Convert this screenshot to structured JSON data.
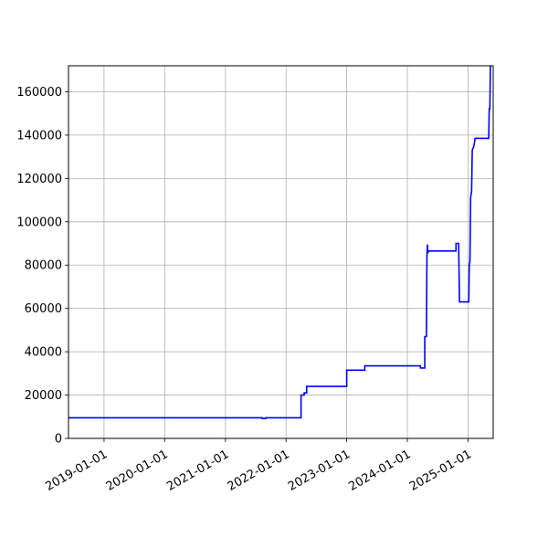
{
  "chart_data": {
    "type": "line",
    "title": "",
    "xlabel": "",
    "ylabel": "",
    "x_axis_type": "date",
    "xlim": [
      "2018-06-01",
      "2025-06-01"
    ],
    "ylim": [
      0,
      172000
    ],
    "grid": true,
    "legend": "none",
    "x_ticks": [
      "2019-01-01",
      "2020-01-01",
      "2021-01-01",
      "2022-01-01",
      "2023-01-01",
      "2024-01-01",
      "2025-01-01"
    ],
    "y_ticks": [
      0,
      20000,
      40000,
      60000,
      80000,
      100000,
      120000,
      140000,
      160000
    ],
    "series": [
      {
        "color": "#0000ff",
        "points": [
          [
            "2018-06-01",
            9500
          ],
          [
            "2021-08-10",
            9500
          ],
          [
            "2021-08-10",
            9200
          ],
          [
            "2021-09-01",
            9200
          ],
          [
            "2021-09-01",
            9500
          ],
          [
            "2022-04-01",
            9500
          ],
          [
            "2022-04-01",
            20000
          ],
          [
            "2022-04-20",
            20000
          ],
          [
            "2022-04-20",
            21000
          ],
          [
            "2022-05-05",
            21000
          ],
          [
            "2022-05-05",
            24000
          ],
          [
            "2023-01-01",
            24000
          ],
          [
            "2023-01-01",
            31500
          ],
          [
            "2023-04-20",
            31500
          ],
          [
            "2023-04-20",
            33500
          ],
          [
            "2024-03-20",
            33500
          ],
          [
            "2024-03-20",
            32500
          ],
          [
            "2024-04-15",
            32500
          ],
          [
            "2024-04-15",
            47000
          ],
          [
            "2024-04-25",
            47000
          ],
          [
            "2024-04-28",
            84000
          ],
          [
            "2024-05-01",
            89500
          ],
          [
            "2024-05-03",
            85500
          ],
          [
            "2024-05-08",
            86500
          ],
          [
            "2024-10-20",
            86500
          ],
          [
            "2024-10-20",
            90000
          ],
          [
            "2024-11-05",
            90000
          ],
          [
            "2024-11-10",
            63000
          ],
          [
            "2025-01-05",
            63000
          ],
          [
            "2025-01-08",
            80500
          ],
          [
            "2025-01-12",
            81500
          ],
          [
            "2025-01-16",
            111000
          ],
          [
            "2025-01-22",
            114000
          ],
          [
            "2025-01-26",
            133000
          ],
          [
            "2025-02-05",
            135000
          ],
          [
            "2025-02-12",
            138500
          ],
          [
            "2025-05-05",
            138500
          ],
          [
            "2025-05-08",
            152000
          ],
          [
            "2025-05-12",
            152000
          ],
          [
            "2025-05-15",
            172000
          ]
        ]
      }
    ]
  }
}
